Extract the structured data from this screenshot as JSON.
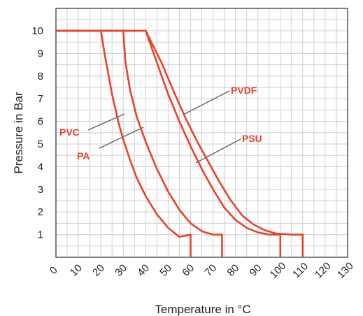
{
  "chart_data": {
    "type": "line",
    "xlabel": "Temperature in °C",
    "ylabel": "Pressure in Bar",
    "xlim": [
      0,
      130
    ],
    "ylim": [
      0,
      11
    ],
    "x_ticks": [
      0,
      10,
      20,
      30,
      40,
      50,
      60,
      70,
      80,
      90,
      100,
      110,
      120,
      130
    ],
    "y_ticks": [
      1,
      2,
      3,
      4,
      5,
      6,
      7,
      8,
      9,
      10
    ],
    "grid": true,
    "line_color": "#e8432a",
    "series": [
      {
        "name": "PVC",
        "points": [
          [
            0,
            10
          ],
          [
            20,
            10
          ],
          [
            22,
            8.8
          ],
          [
            25,
            7.2
          ],
          [
            28,
            5.9
          ],
          [
            30,
            5.2
          ],
          [
            33,
            4.3
          ],
          [
            36,
            3.5
          ],
          [
            40,
            2.7
          ],
          [
            45,
            1.9
          ],
          [
            50,
            1.3
          ],
          [
            55,
            0.9
          ],
          [
            60,
            1
          ],
          [
            60,
            0
          ]
        ]
      },
      {
        "name": "PA",
        "points": [
          [
            0,
            10
          ],
          [
            30,
            10
          ],
          [
            31,
            8.6
          ],
          [
            33,
            7.4
          ],
          [
            36,
            6.2
          ],
          [
            40,
            5.1
          ],
          [
            45,
            3.9
          ],
          [
            50,
            2.9
          ],
          [
            55,
            2.1
          ],
          [
            60,
            1.5
          ],
          [
            65,
            1.15
          ],
          [
            70,
            1
          ],
          [
            74,
            1
          ],
          [
            74,
            0
          ]
        ]
      },
      {
        "name": "PVDF",
        "points": [
          [
            0,
            10
          ],
          [
            40,
            10
          ],
          [
            45,
            8.6
          ],
          [
            50,
            7.2
          ],
          [
            55,
            6
          ],
          [
            60,
            4.9
          ],
          [
            65,
            3.9
          ],
          [
            70,
            3
          ],
          [
            75,
            2.2
          ],
          [
            80,
            1.65
          ],
          [
            85,
            1.3
          ],
          [
            90,
            1.1
          ],
          [
            95,
            1
          ],
          [
            100,
            1
          ],
          [
            100,
            0
          ]
        ]
      },
      {
        "name": "PSU",
        "points": [
          [
            0,
            10
          ],
          [
            40,
            10
          ],
          [
            47,
            8.6
          ],
          [
            53,
            7.2
          ],
          [
            58,
            6.1
          ],
          [
            63,
            5.1
          ],
          [
            68,
            4.2
          ],
          [
            73,
            3.3
          ],
          [
            78,
            2.5
          ],
          [
            83,
            1.85
          ],
          [
            88,
            1.45
          ],
          [
            93,
            1.2
          ],
          [
            98,
            1.05
          ],
          [
            105,
            1
          ],
          [
            110,
            1
          ],
          [
            110,
            0
          ]
        ]
      }
    ],
    "labels": [
      {
        "series": "PVC",
        "text": "PVC"
      },
      {
        "series": "PA",
        "text": "PA"
      },
      {
        "series": "PVDF",
        "text": "PVDF"
      },
      {
        "series": "PSU",
        "text": "PSU"
      }
    ]
  }
}
